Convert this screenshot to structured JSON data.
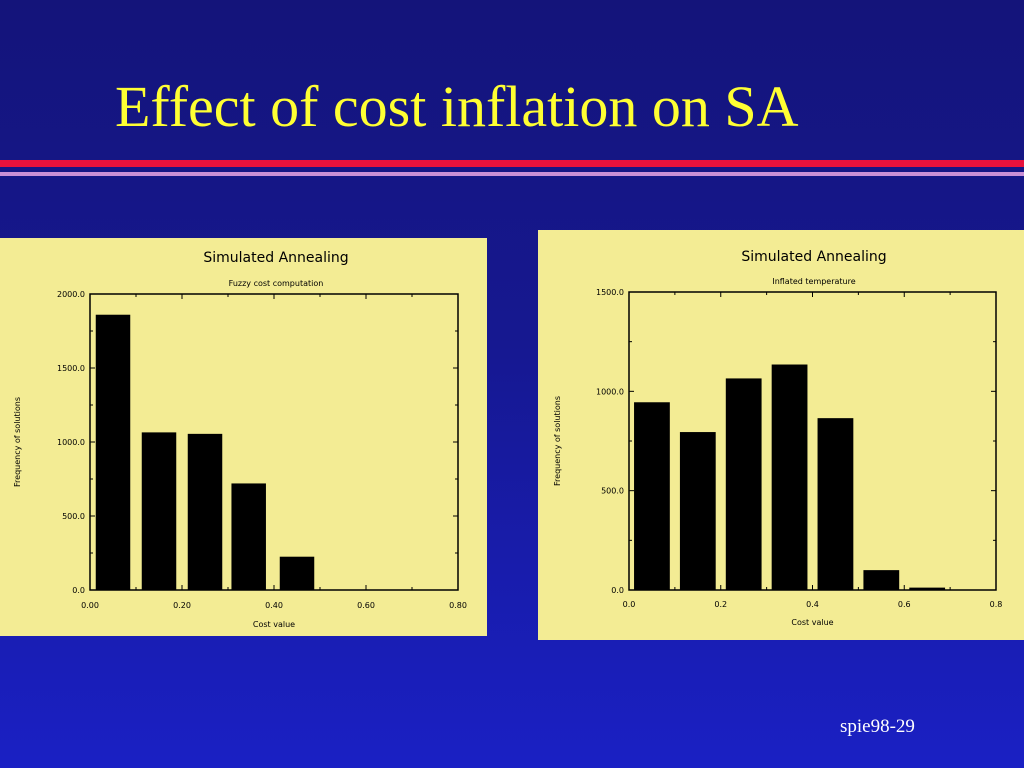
{
  "slide": {
    "title": "Effect of cost inflation on SA",
    "footer": "spie98-29"
  },
  "chart_data": [
    {
      "type": "bar",
      "title": "Simulated Annealing",
      "subtitle": "Fuzzy cost computation",
      "xlabel": "Cost value",
      "ylabel": "Frequency of solutions",
      "xlim": [
        0.0,
        0.8
      ],
      "ylim": [
        0.0,
        2000.0
      ],
      "xticks": [
        0.0,
        0.2,
        0.4,
        0.6,
        0.8
      ],
      "xtick_labels": [
        "0.00",
        "0.20",
        "0.40",
        "0.60",
        "0.80"
      ],
      "yticks": [
        0.0,
        500.0,
        1000.0,
        1500.0,
        2000.0
      ],
      "ytick_labels": [
        "0.0",
        "500.0",
        "1000.0",
        "1500.0",
        "2000.0"
      ],
      "bar_width": 0.075,
      "x": [
        0.05,
        0.15,
        0.25,
        0.345,
        0.45
      ],
      "values": [
        1860,
        1065,
        1055,
        720,
        225
      ],
      "grid": false
    },
    {
      "type": "bar",
      "title": "Simulated Annealing",
      "subtitle": "Inflated temperature",
      "xlabel": "Cost value",
      "ylabel": "Frequency of solutions",
      "xlim": [
        0.0,
        0.8
      ],
      "ylim": [
        0.0,
        1500.0
      ],
      "xticks": [
        0.0,
        0.2,
        0.4,
        0.6,
        0.8
      ],
      "xtick_labels": [
        "0.0",
        "0.2",
        "0.4",
        "0.6",
        "0.8"
      ],
      "yticks": [
        0.0,
        500.0,
        1000.0,
        1500.0
      ],
      "ytick_labels": [
        "0.0",
        "500.0",
        "1000.0",
        "1500.0"
      ],
      "bar_width": 0.078,
      "x": [
        0.05,
        0.15,
        0.25,
        0.35,
        0.45,
        0.55,
        0.65
      ],
      "values": [
        945,
        795,
        1065,
        1135,
        865,
        100,
        12
      ],
      "grid": false
    }
  ]
}
